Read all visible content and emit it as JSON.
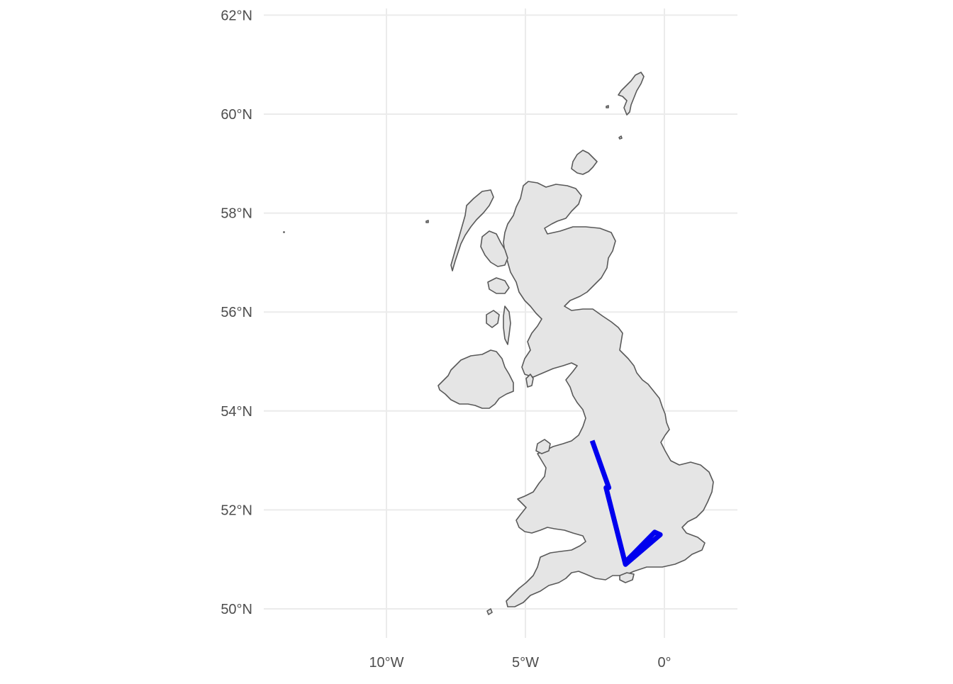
{
  "map": {
    "title": "",
    "latitude_labels": [
      "62°N",
      "60°N",
      "58°N",
      "56°N",
      "54°N",
      "52°N",
      "50°N"
    ],
    "longitude_labels": [
      "10°W",
      "5°W",
      "0°"
    ],
    "latitudes": [
      62,
      60,
      58,
      56,
      54,
      52,
      50
    ],
    "longitudes": [
      -10,
      -5,
      0
    ],
    "colors": {
      "land_fill": "#e5e5e5",
      "coastline": "#595959",
      "gridline": "#ebebeb",
      "route": "#0000ee",
      "axis_text": "#4d4d4d"
    },
    "route_coordinates": [
      {
        "lon": -2.6,
        "lat": 53.4
      },
      {
        "lon": -2.0,
        "lat": 52.45
      },
      {
        "lon": -2.1,
        "lat": 52.45
      },
      {
        "lon": -1.4,
        "lat": 50.9
      },
      {
        "lon": -0.15,
        "lat": 51.5
      },
      {
        "lon": -0.35,
        "lat": 51.55
      },
      {
        "lon": -1.4,
        "lat": 50.95
      }
    ],
    "features": [
      "great-britain",
      "northern-ireland",
      "shetland",
      "orkney",
      "outer-hebrides",
      "skye",
      "isle-of-man",
      "anglesey",
      "isle-of-wight",
      "scilly"
    ]
  }
}
